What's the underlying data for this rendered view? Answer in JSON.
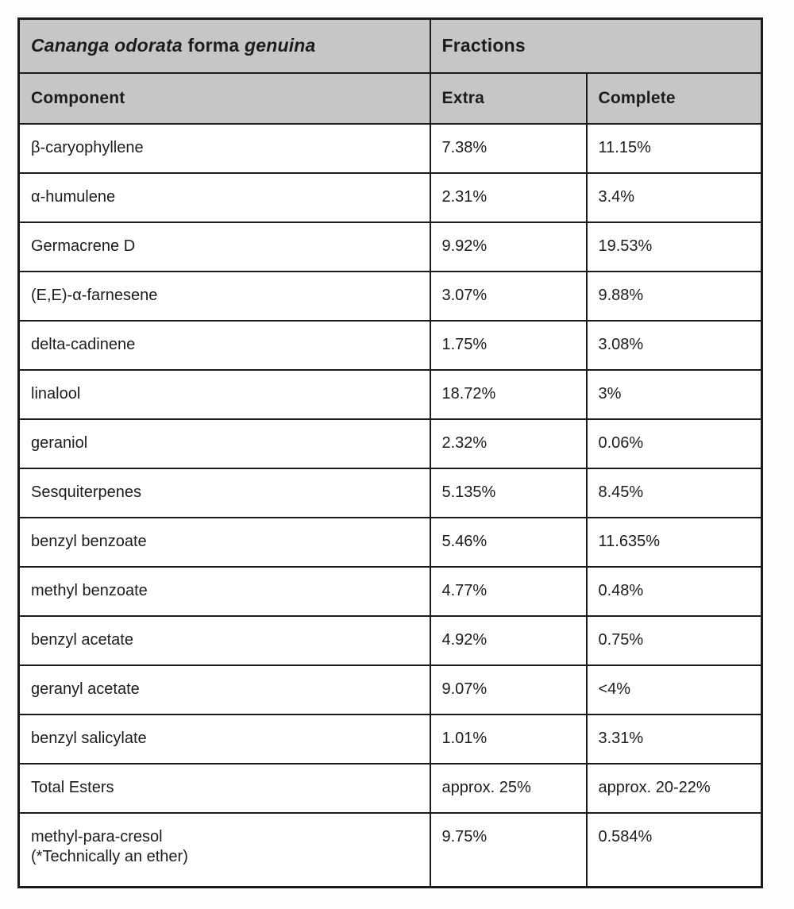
{
  "page": {
    "background": "#fdfdfd"
  },
  "table": {
    "colors": {
      "header_bg": "#c5c7c5",
      "border": "#1b1b1b",
      "cell_bg": "#ffffff"
    },
    "header": {
      "title_italic_1": "Cananga odorata",
      "title_regular": " forma ",
      "title_italic_2": "genuina",
      "fractions_label": "Fractions",
      "columns": {
        "component": "Component",
        "extra": "Extra",
        "complete": "Complete"
      }
    },
    "rows": [
      {
        "component": "β-caryophyllene",
        "extra": "7.38%",
        "complete": "11.15%"
      },
      {
        "component": "α-humulene",
        "extra": "2.31%",
        "complete": "3.4%"
      },
      {
        "component": "Germacrene D",
        "extra": "9.92%",
        "complete": "19.53%"
      },
      {
        "component": "(E,E)-α-farnesene",
        "extra": "3.07%",
        "complete": "9.88%"
      },
      {
        "component": "delta-cadinene",
        "extra": "1.75%",
        "complete": "3.08%"
      },
      {
        "component": "linalool",
        "extra": "18.72%",
        "complete": "3%"
      },
      {
        "component": "geraniol",
        "extra": "2.32%",
        "complete": "0.06%"
      },
      {
        "component": "Sesquiterpenes",
        "extra": "5.135%",
        "complete": "8.45%"
      },
      {
        "component": "benzyl benzoate",
        "extra": "5.46%",
        "complete": "11.635%"
      },
      {
        "component": "methyl benzoate",
        "extra": "4.77%",
        "complete": "0.48%"
      },
      {
        "component": "benzyl acetate",
        "extra": "4.92%",
        "complete": "0.75%"
      },
      {
        "component": "geranyl acetate",
        "extra": "9.07%",
        "complete": "<4%"
      },
      {
        "component": "benzyl salicylate",
        "extra": "1.01%",
        "complete": "3.31%"
      },
      {
        "component": "Total Esters",
        "extra": "approx. 25%",
        "complete": "approx. 20-22%"
      },
      {
        "component": "methyl-para-cresol",
        "component_note": "(*Technically an ether)",
        "extra": "9.75%",
        "complete": "0.584%"
      }
    ]
  }
}
